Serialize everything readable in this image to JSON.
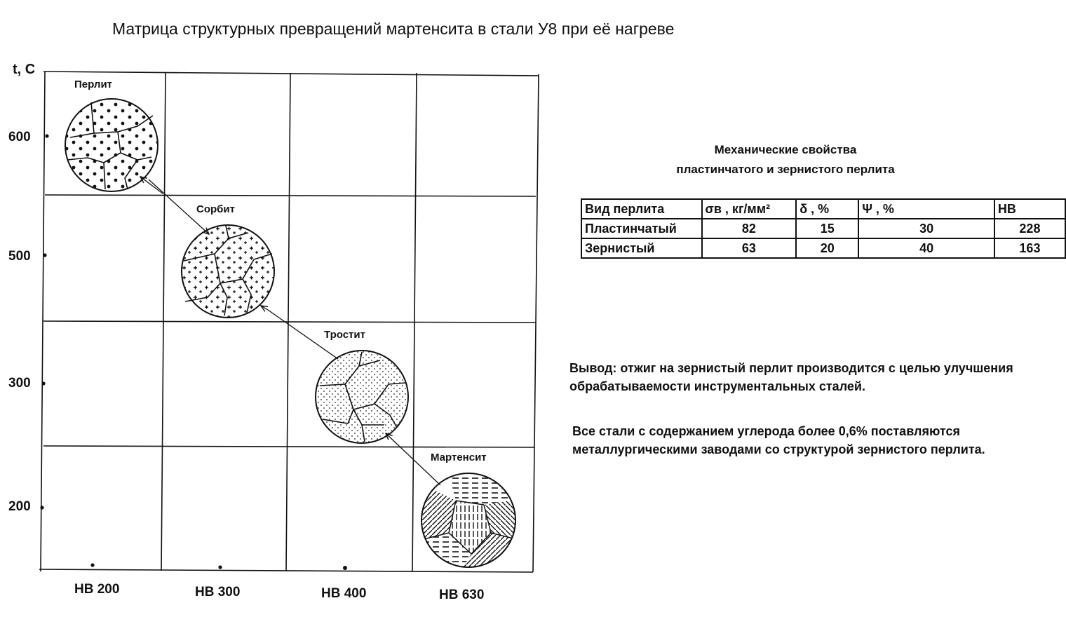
{
  "title": "Матрица структурных превращений  мартенсита в стали У8 при её нагреве",
  "axis": {
    "y_label": "t, C",
    "y_ticks": [
      "600",
      "500",
      "300",
      "200"
    ],
    "x_ticks": [
      "HB 200",
      "HB 300",
      "HB 400",
      "HB 630"
    ]
  },
  "phases": [
    {
      "name": "Перлит",
      "pattern": "large-dots"
    },
    {
      "name": "Сорбит",
      "pattern": "plus-marks"
    },
    {
      "name": "Тростит",
      "pattern": "fine-dots"
    },
    {
      "name": "Мартенсит",
      "pattern": "hatched-needles"
    }
  ],
  "mechanical": {
    "title_line1": "Механические свойства",
    "title_line2": "пластинчатого и зернистого перлита",
    "headers": [
      "Вид перлита",
      "σв , кг/мм²",
      "δ , %",
      "Ψ , %",
      "HB"
    ],
    "rows": [
      [
        "Пластинчатый",
        "82",
        "15",
        "30",
        "228"
      ],
      [
        "Зернистый",
        "63",
        "20",
        "40",
        "163"
      ]
    ]
  },
  "conclusion": "Вывод: отжиг на зернистый перлит производится с целью улучшения обрабатываемости инструментальных сталей.",
  "note": "Все стали с содержанием углерода более 0,6% поставляются металлургическими заводами со структурой зернистого перлита."
}
